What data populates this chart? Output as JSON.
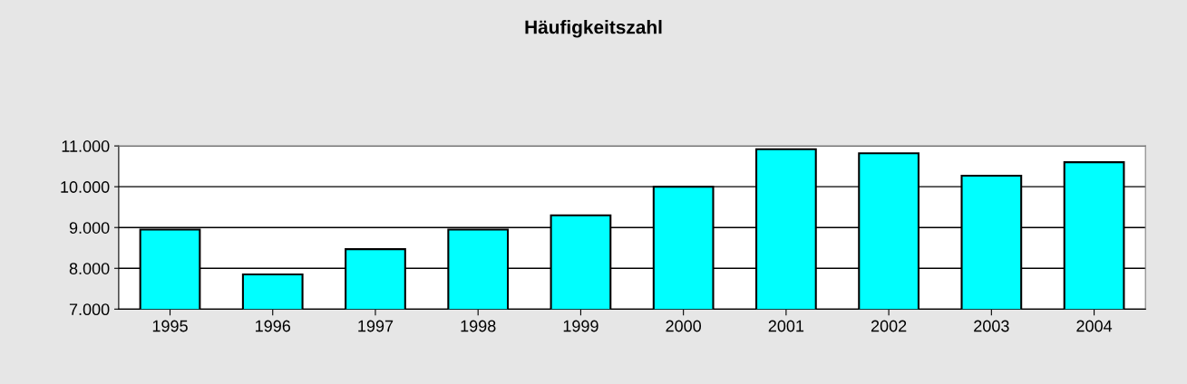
{
  "chart_data": {
    "type": "bar",
    "title": "Häufigkeitszahl",
    "categories": [
      "1995",
      "1996",
      "1997",
      "1998",
      "1999",
      "2000",
      "2001",
      "2002",
      "2003",
      "2004"
    ],
    "values": [
      8950,
      7850,
      8470,
      8950,
      9300,
      10000,
      10920,
      10820,
      10270,
      10600
    ],
    "color": "#00ffff",
    "ylim": [
      7000,
      11000
    ],
    "yticks": [
      {
        "value": 7000,
        "label": "7.000"
      },
      {
        "value": 8000,
        "label": "8.000"
      },
      {
        "value": 9000,
        "label": "9.000"
      },
      {
        "value": 10000,
        "label": "10.000"
      },
      {
        "value": 11000,
        "label": "11.000"
      }
    ],
    "grid": "y"
  }
}
